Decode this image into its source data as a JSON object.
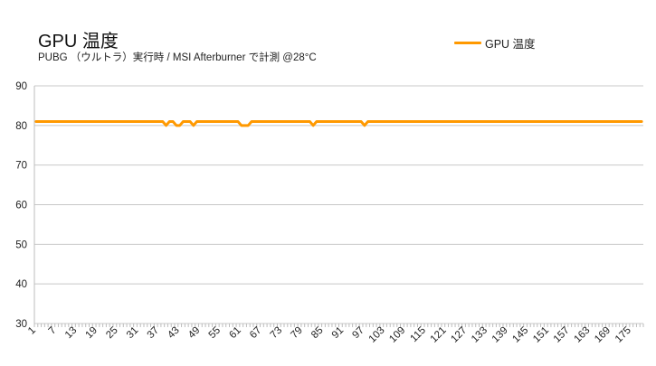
{
  "chart_data": {
    "type": "line",
    "title": "GPU 温度",
    "subtitle": "PUBG （ウルトラ）実行時 / MSI Afterburner で計測 @28°C",
    "xlabel": "",
    "ylabel": "",
    "ylim": [
      30,
      90
    ],
    "y_ticks": [
      30,
      40,
      50,
      60,
      70,
      80,
      90
    ],
    "x_count": 178,
    "x_tick_labels": [
      "1",
      "7",
      "13",
      "19",
      "25",
      "31",
      "37",
      "43",
      "49",
      "55",
      "61",
      "67",
      "73",
      "79",
      "85",
      "91",
      "97",
      "103",
      "109",
      "115",
      "121",
      "127",
      "133",
      "139",
      "145",
      "151",
      "157",
      "163",
      "169",
      "175"
    ],
    "grid": true,
    "legend_position": "top-right",
    "series": [
      {
        "name": "GPU 温度",
        "color": "#ff9900",
        "baseline": 81,
        "dips": [
          {
            "x": 39,
            "y": 80
          },
          {
            "x": 42,
            "y": 80
          },
          {
            "x": 43,
            "y": 80
          },
          {
            "x": 47,
            "y": 80
          },
          {
            "x": 61,
            "y": 80
          },
          {
            "x": 62,
            "y": 80
          },
          {
            "x": 63,
            "y": 80
          },
          {
            "x": 82,
            "y": 80
          },
          {
            "x": 97,
            "y": 80
          }
        ]
      }
    ]
  }
}
